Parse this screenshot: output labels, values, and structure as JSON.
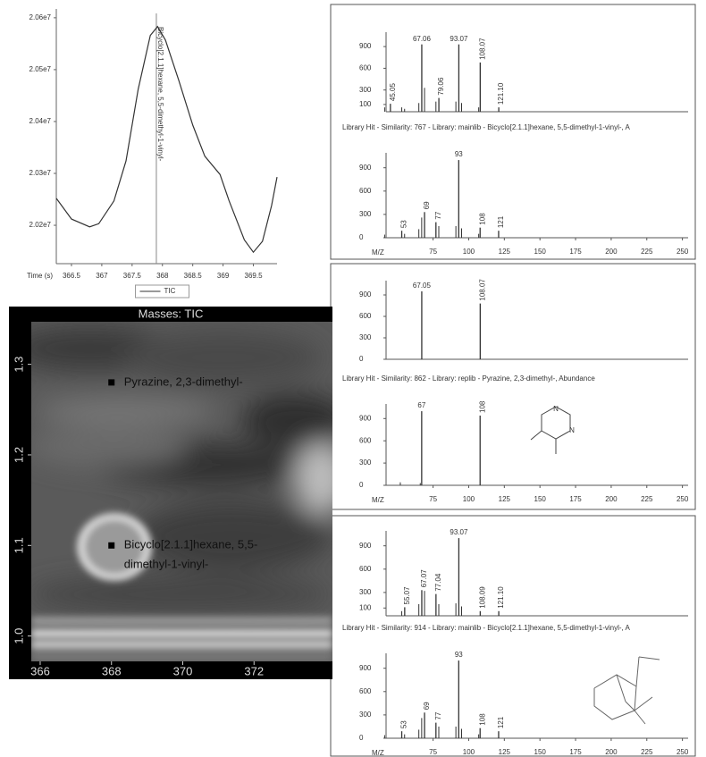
{
  "chart_data": [
    {
      "type": "line",
      "xlabel": "Time (s)",
      "x": [
        366.25,
        366.5,
        366.8,
        366.95,
        367.2,
        367.4,
        367.6,
        367.8,
        367.92,
        368.05,
        368.27,
        368.5,
        368.7,
        368.95,
        369.1,
        369.35,
        369.5,
        369.65,
        369.8,
        369.89
      ],
      "series": [
        {
          "name": "TIC",
          "color": "#333333",
          "values": [
            20252000,
            20212000,
            20197000,
            20203000,
            20247000,
            20324000,
            20462000,
            20566000,
            20583000,
            20557000,
            20479000,
            20393000,
            20333000,
            20298000,
            20247000,
            20172000,
            20148000,
            20169000,
            20238000,
            20293000
          ]
        }
      ],
      "xlim": [
        366.25,
        369.89
      ],
      "ylim": [
        20126000,
        20617000
      ],
      "xticks": [
        366.5,
        367,
        367.5,
        368,
        368.5,
        369,
        369.5
      ],
      "yticks": [
        {
          "value": 20200000,
          "label": "2.02e7"
        },
        {
          "value": 20300000,
          "label": "2.03e7"
        },
        {
          "value": 20400000,
          "label": "2.04e7"
        },
        {
          "value": 20500000,
          "label": "2.05e7"
        },
        {
          "value": 20600000,
          "label": "2.06e7"
        }
      ],
      "annotations": [
        {
          "text": "Bicyclo[2.1.1]hexane, 5,5-dimethyl-1-vinyl-",
          "x": 367.9
        }
      ],
      "legend": "bottom"
    },
    {
      "type": "heatmap",
      "title": "Masses:  TIC",
      "xlim": [
        365.75,
        374.2
      ],
      "ylim": [
        0.972,
        1.347
      ],
      "xticks": [
        366,
        368,
        370,
        372
      ],
      "yticks": [
        {
          "value": 1,
          "label": "1.0"
        },
        1.1,
        1.2,
        1.3
      ],
      "points": [
        {
          "label": [
            "Pyrazine, 2,3-dimethyl-"
          ],
          "x": 368,
          "y": 1.28
        },
        {
          "label": [
            "Bicyclo[2.1.1]hexane, 5,5-",
            "dimethyl-1-vinyl-"
          ],
          "x": 368,
          "y": 1.1
        }
      ]
    },
    {
      "type": "bar",
      "xlim": [
        42,
        254
      ],
      "ylim": [
        0,
        1000
      ],
      "color": "#333333",
      "yticks": [
        100,
        300,
        600,
        900
      ],
      "x": [
        45.05,
        67.06,
        79.06,
        93.07,
        108.07,
        {
          "value": 121.1,
          "label": "121.10"
        }
      ],
      "values": [
        110,
        930,
        190,
        930,
        680,
        60
      ],
      "minor_x": [
        41,
        53,
        55,
        65,
        69,
        77,
        91,
        95,
        107
      ],
      "minor_values": [
        60,
        60,
        40,
        120,
        330,
        140,
        140,
        120,
        60
      ]
    },
    {
      "type": "bar",
      "title": "Library Hit - Similarity: 767 - Library: mainlib - Bicyclo[2.1.1]hexane, 5,5-dimethyl-1-vinyl-, A",
      "xlabel": "M/Z",
      "xlim": [
        42,
        254
      ],
      "ylim": [
        0,
        1000
      ],
      "color": "#333333",
      "xticks": [
        75,
        100,
        125,
        150,
        175,
        200,
        225,
        250
      ],
      "yticks": [
        0,
        300,
        600,
        900
      ],
      "x": [
        53,
        69,
        77,
        93,
        108,
        121
      ],
      "values": [
        90,
        330,
        200,
        999,
        130,
        90
      ],
      "minor_x": [
        41,
        55,
        65,
        67,
        79,
        91,
        95,
        107
      ],
      "minor_values": [
        40,
        50,
        110,
        260,
        150,
        150,
        120,
        50
      ]
    },
    {
      "type": "bar",
      "xlim": [
        42,
        254
      ],
      "ylim": [
        0,
        1000
      ],
      "color": "#333333",
      "yticks": [
        0,
        300,
        600,
        900
      ],
      "x": [
        67.05,
        108.07
      ],
      "values": [
        950,
        780
      ]
    },
    {
      "type": "bar",
      "title": "Library Hit - Similarity: 862 - Library: replib - Pyrazine, 2,3-dimethyl-, Abundance",
      "xlabel": "M/Z",
      "xlim": [
        42,
        254
      ],
      "ylim": [
        0,
        1000
      ],
      "color": "#333333",
      "xticks": [
        75,
        100,
        125,
        150,
        175,
        200,
        225,
        250
      ],
      "yticks": [
        0,
        300,
        600,
        900
      ],
      "x": [
        67,
        108
      ],
      "values": [
        999,
        940
      ],
      "minor_x": [
        52,
        66
      ],
      "minor_values": [
        40,
        30
      ],
      "structure_labels": [
        "N",
        "N"
      ]
    },
    {
      "type": "bar",
      "xlim": [
        42,
        254
      ],
      "ylim": [
        0,
        1000
      ],
      "color": "#333333",
      "yticks": [
        100,
        300,
        600,
        900
      ],
      "x": [
        55.07,
        67.07,
        77.04,
        93.07,
        108.09,
        {
          "value": 121.1,
          "label": "121.10"
        }
      ],
      "values": [
        110,
        330,
        280,
        999,
        60,
        60
      ],
      "minor_x": [
        53,
        65,
        69,
        79,
        91,
        95
      ],
      "minor_values": [
        60,
        150,
        320,
        150,
        160,
        120
      ]
    },
    {
      "type": "bar",
      "title": "Library Hit - Similarity: 914 - Library: mainlib - Bicyclo[2.1.1]hexane, 5,5-dimethyl-1-vinyl-, A",
      "xlabel": "M/Z",
      "xlim": [
        42,
        254
      ],
      "ylim": [
        0,
        1000
      ],
      "color": "#333333",
      "xticks": [
        75,
        100,
        125,
        150,
        175,
        200,
        225,
        250
      ],
      "yticks": [
        0,
        300,
        600,
        900
      ],
      "x": [
        53,
        69,
        77,
        93,
        108,
        121
      ],
      "values": [
        90,
        330,
        200,
        999,
        130,
        90
      ],
      "minor_x": [
        41,
        55,
        65,
        67,
        79,
        91,
        95,
        107
      ],
      "minor_values": [
        40,
        50,
        110,
        260,
        150,
        150,
        120,
        50
      ]
    }
  ]
}
